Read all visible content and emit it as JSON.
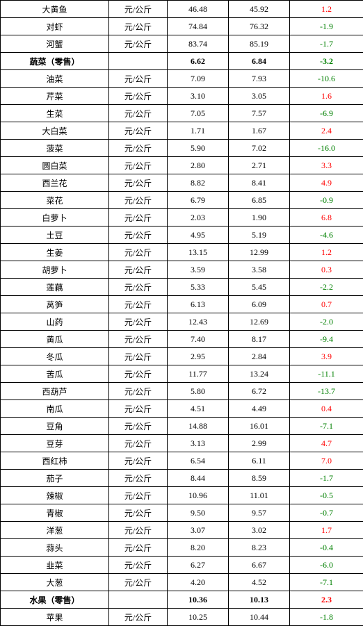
{
  "unit": "元/公斤",
  "rows": [
    {
      "name": "大黄鱼",
      "unit": "元/公斤",
      "c3": "46.48",
      "c4": "45.92",
      "c5": "1.2",
      "bold": false,
      "color": "red"
    },
    {
      "name": "对虾",
      "unit": "元/公斤",
      "c3": "74.84",
      "c4": "76.32",
      "c5": "-1.9",
      "bold": false,
      "color": "green"
    },
    {
      "name": "河蟹",
      "unit": "元/公斤",
      "c3": "83.74",
      "c4": "85.19",
      "c5": "-1.7",
      "bold": false,
      "color": "green"
    },
    {
      "name": "蔬菜（零售）",
      "unit": "",
      "c3": "6.62",
      "c4": "6.84",
      "c5": "-3.2",
      "bold": true,
      "color": "green"
    },
    {
      "name": "油菜",
      "unit": "元/公斤",
      "c3": "7.09",
      "c4": "7.93",
      "c5": "-10.6",
      "bold": false,
      "color": "green"
    },
    {
      "name": "芹菜",
      "unit": "元/公斤",
      "c3": "3.10",
      "c4": "3.05",
      "c5": "1.6",
      "bold": false,
      "color": "red"
    },
    {
      "name": "生菜",
      "unit": "元/公斤",
      "c3": "7.05",
      "c4": "7.57",
      "c5": "-6.9",
      "bold": false,
      "color": "green"
    },
    {
      "name": "大白菜",
      "unit": "元/公斤",
      "c3": "1.71",
      "c4": "1.67",
      "c5": "2.4",
      "bold": false,
      "color": "red"
    },
    {
      "name": "菠菜",
      "unit": "元/公斤",
      "c3": "5.90",
      "c4": "7.02",
      "c5": "-16.0",
      "bold": false,
      "color": "green"
    },
    {
      "name": "圆白菜",
      "unit": "元/公斤",
      "c3": "2.80",
      "c4": "2.71",
      "c5": "3.3",
      "bold": false,
      "color": "red"
    },
    {
      "name": "西兰花",
      "unit": "元/公斤",
      "c3": "8.82",
      "c4": "8.41",
      "c5": "4.9",
      "bold": false,
      "color": "red"
    },
    {
      "name": "菜花",
      "unit": "元/公斤",
      "c3": "6.79",
      "c4": "6.85",
      "c5": "-0.9",
      "bold": false,
      "color": "green"
    },
    {
      "name": "白萝卜",
      "unit": "元/公斤",
      "c3": "2.03",
      "c4": "1.90",
      "c5": "6.8",
      "bold": false,
      "color": "red"
    },
    {
      "name": "土豆",
      "unit": "元/公斤",
      "c3": "4.95",
      "c4": "5.19",
      "c5": "-4.6",
      "bold": false,
      "color": "green"
    },
    {
      "name": "生姜",
      "unit": "元/公斤",
      "c3": "13.15",
      "c4": "12.99",
      "c5": "1.2",
      "bold": false,
      "color": "red"
    },
    {
      "name": "胡萝卜",
      "unit": "元/公斤",
      "c3": "3.59",
      "c4": "3.58",
      "c5": "0.3",
      "bold": false,
      "color": "red"
    },
    {
      "name": "莲藕",
      "unit": "元/公斤",
      "c3": "5.33",
      "c4": "5.45",
      "c5": "-2.2",
      "bold": false,
      "color": "green"
    },
    {
      "name": "莴笋",
      "unit": "元/公斤",
      "c3": "6.13",
      "c4": "6.09",
      "c5": "0.7",
      "bold": false,
      "color": "red"
    },
    {
      "name": "山药",
      "unit": "元/公斤",
      "c3": "12.43",
      "c4": "12.69",
      "c5": "-2.0",
      "bold": false,
      "color": "green"
    },
    {
      "name": "黄瓜",
      "unit": "元/公斤",
      "c3": "7.40",
      "c4": "8.17",
      "c5": "-9.4",
      "bold": false,
      "color": "green"
    },
    {
      "name": "冬瓜",
      "unit": "元/公斤",
      "c3": "2.95",
      "c4": "2.84",
      "c5": "3.9",
      "bold": false,
      "color": "red"
    },
    {
      "name": "苦瓜",
      "unit": "元/公斤",
      "c3": "11.77",
      "c4": "13.24",
      "c5": "-11.1",
      "bold": false,
      "color": "green"
    },
    {
      "name": "西葫芦",
      "unit": "元/公斤",
      "c3": "5.80",
      "c4": "6.72",
      "c5": "-13.7",
      "bold": false,
      "color": "green"
    },
    {
      "name": "南瓜",
      "unit": "元/公斤",
      "c3": "4.51",
      "c4": "4.49",
      "c5": "0.4",
      "bold": false,
      "color": "red"
    },
    {
      "name": "豆角",
      "unit": "元/公斤",
      "c3": "14.88",
      "c4": "16.01",
      "c5": "-7.1",
      "bold": false,
      "color": "green"
    },
    {
      "name": "豆芽",
      "unit": "元/公斤",
      "c3": "3.13",
      "c4": "2.99",
      "c5": "4.7",
      "bold": false,
      "color": "red"
    },
    {
      "name": "西红柿",
      "unit": "元/公斤",
      "c3": "6.54",
      "c4": "6.11",
      "c5": "7.0",
      "bold": false,
      "color": "red"
    },
    {
      "name": "茄子",
      "unit": "元/公斤",
      "c3": "8.44",
      "c4": "8.59",
      "c5": "-1.7",
      "bold": false,
      "color": "green"
    },
    {
      "name": "辣椒",
      "unit": "元/公斤",
      "c3": "10.96",
      "c4": "11.01",
      "c5": "-0.5",
      "bold": false,
      "color": "green"
    },
    {
      "name": "青椒",
      "unit": "元/公斤",
      "c3": "9.50",
      "c4": "9.57",
      "c5": "-0.7",
      "bold": false,
      "color": "green"
    },
    {
      "name": "洋葱",
      "unit": "元/公斤",
      "c3": "3.07",
      "c4": "3.02",
      "c5": "1.7",
      "bold": false,
      "color": "red"
    },
    {
      "name": "蒜头",
      "unit": "元/公斤",
      "c3": "8.20",
      "c4": "8.23",
      "c5": "-0.4",
      "bold": false,
      "color": "green"
    },
    {
      "name": "韭菜",
      "unit": "元/公斤",
      "c3": "6.27",
      "c4": "6.67",
      "c5": "-6.0",
      "bold": false,
      "color": "green"
    },
    {
      "name": "大葱",
      "unit": "元/公斤",
      "c3": "4.20",
      "c4": "4.52",
      "c5": "-7.1",
      "bold": false,
      "color": "green"
    },
    {
      "name": "水果（零售）",
      "unit": "",
      "c3": "10.36",
      "c4": "10.13",
      "c5": "2.3",
      "bold": true,
      "color": "red"
    },
    {
      "name": "苹果",
      "unit": "元/公斤",
      "c3": "10.25",
      "c4": "10.44",
      "c5": "-1.8",
      "bold": false,
      "color": "green"
    }
  ]
}
